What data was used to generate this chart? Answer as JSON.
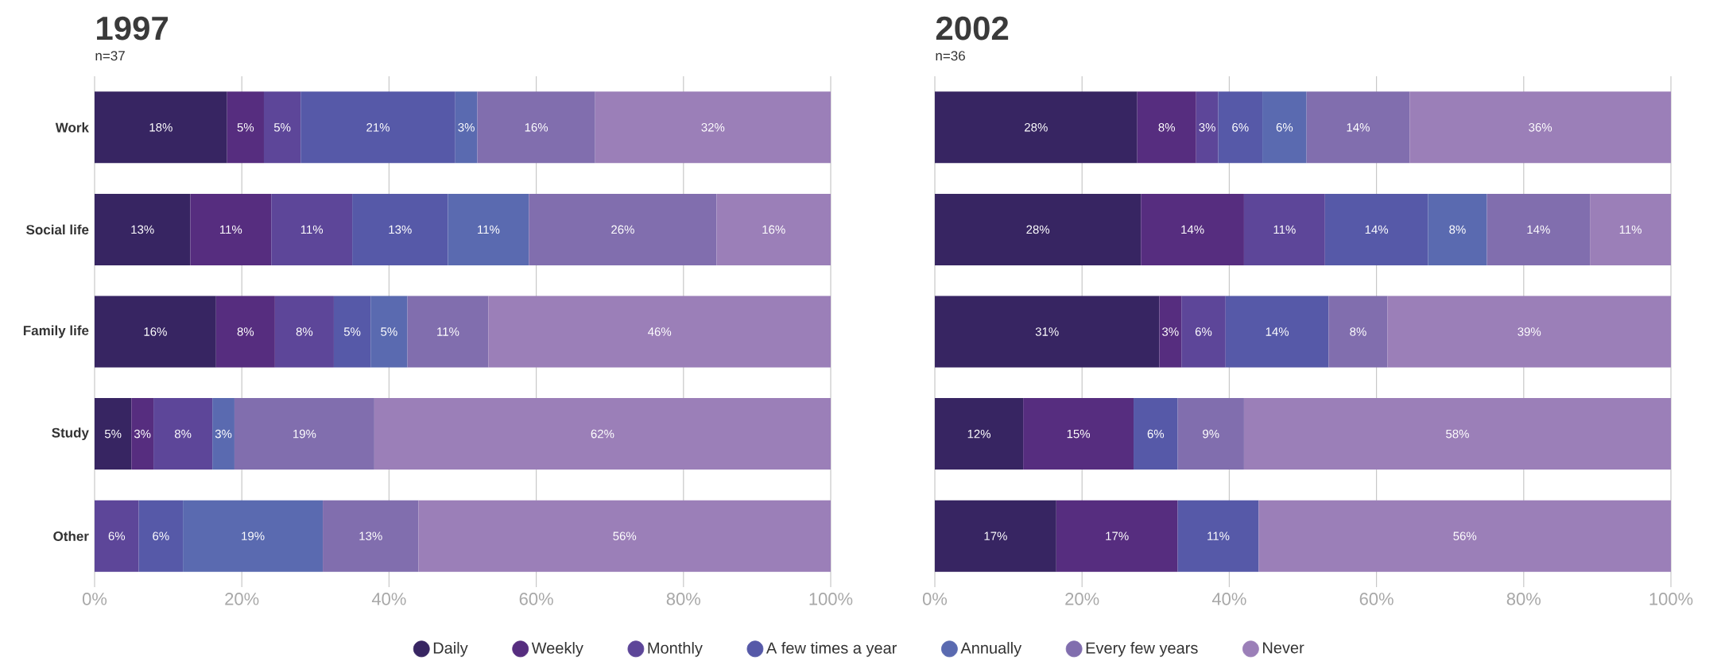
{
  "chart_data": [
    {
      "type": "bar",
      "orientation": "horizontal",
      "stacked": true,
      "title": "1997",
      "subtitle": "n=37",
      "categories": [
        "Work",
        "Social life",
        "Family life",
        "Study",
        "Other"
      ],
      "xlim": [
        0,
        100
      ],
      "xticks": [
        {
          "value": 0,
          "label": "0%"
        },
        {
          "value": 20,
          "label": "20%"
        },
        {
          "value": 40,
          "label": "40%"
        },
        {
          "value": 60,
          "label": "60%"
        },
        {
          "value": 80,
          "label": "80%"
        },
        {
          "value": 100,
          "label": "100%"
        }
      ],
      "grid": "x",
      "legend": "bottom",
      "series": [
        {
          "name": "Daily",
          "color": "#372562",
          "values": [
            18,
            13,
            16.5,
            5,
            null
          ],
          "value_labels": [
            "18%",
            "13%",
            "16%",
            "5%",
            null
          ]
        },
        {
          "name": "Weekly",
          "color": "#562d7f",
          "values": [
            5,
            11,
            8,
            3,
            null
          ],
          "value_labels": [
            "5%",
            "11%",
            "8%",
            "3%",
            null
          ]
        },
        {
          "name": "Monthly",
          "color": "#5d4699",
          "values": [
            5,
            11,
            8,
            8,
            6
          ],
          "value_labels": [
            "5%",
            "11%",
            "8%",
            "8%",
            "6%"
          ]
        },
        {
          "name": "A few times a year",
          "color": "#5659a8",
          "values": [
            21,
            13,
            5,
            null,
            6
          ],
          "value_labels": [
            "21%",
            "13%",
            "5%",
            null,
            "6%"
          ]
        },
        {
          "name": "Annually",
          "color": "#5a6ab0",
          "values": [
            3,
            11,
            5,
            3,
            19
          ],
          "value_labels": [
            "3%",
            "11%",
            "5%",
            "3%",
            "19%"
          ]
        },
        {
          "name": "Every few years",
          "color": "#816eae",
          "values": [
            16,
            25.5,
            11,
            19,
            13
          ],
          "value_labels": [
            "16%",
            "26%",
            "11%",
            "19%",
            "13%"
          ]
        },
        {
          "name": "Never",
          "color": "#9b7fb8",
          "values": [
            32,
            15.5,
            46.5,
            62,
            56
          ],
          "value_labels": [
            "32%",
            "16%",
            "46%",
            "62%",
            "56%"
          ]
        }
      ]
    },
    {
      "type": "bar",
      "orientation": "horizontal",
      "stacked": true,
      "title": "2002",
      "subtitle": "n=36",
      "categories": [
        null,
        null,
        null,
        null,
        null
      ],
      "xlim": [
        0,
        100
      ],
      "xticks": [
        {
          "value": 0,
          "label": "0%"
        },
        {
          "value": 20,
          "label": "20%"
        },
        {
          "value": 40,
          "label": "40%"
        },
        {
          "value": 60,
          "label": "60%"
        },
        {
          "value": 80,
          "label": "80%"
        },
        {
          "value": 100,
          "label": "100%"
        }
      ],
      "grid": "x",
      "tick_labels": "x",
      "series": [
        {
          "color": "#372562",
          "values": [
            27.5,
            28,
            30.5,
            12,
            16.5
          ],
          "value_labels": [
            "28%",
            "28%",
            "31%",
            "12%",
            "17%"
          ]
        },
        {
          "color": "#562d7f",
          "values": [
            8,
            14,
            3,
            15,
            16.5
          ],
          "value_labels": [
            "8%",
            "14%",
            "3%",
            "15%",
            "17%"
          ]
        },
        {
          "color": "#5d4699",
          "values": [
            3,
            11,
            6,
            null,
            null
          ],
          "value_labels": [
            "3%",
            "11%",
            "6%",
            null,
            null
          ]
        },
        {
          "color": "#5659a8",
          "values": [
            6,
            14,
            14,
            6,
            11
          ],
          "value_labels": [
            "6%",
            "14%",
            "14%",
            "6%",
            "11%"
          ]
        },
        {
          "color": "#5a6ab0",
          "values": [
            6,
            8,
            null,
            null,
            null
          ],
          "value_labels": [
            "6%",
            "8%",
            null,
            null,
            null
          ]
        },
        {
          "color": "#816eae",
          "values": [
            14,
            14,
            8,
            9,
            null
          ],
          "value_labels": [
            "14%",
            "14%",
            "8%",
            "9%",
            null
          ]
        },
        {
          "color": "#9b7fb8",
          "values": [
            35.5,
            11,
            38.5,
            58,
            56
          ],
          "value_labels": [
            "36%",
            "11%",
            "39%",
            "58%",
            "56%"
          ]
        }
      ]
    }
  ]
}
